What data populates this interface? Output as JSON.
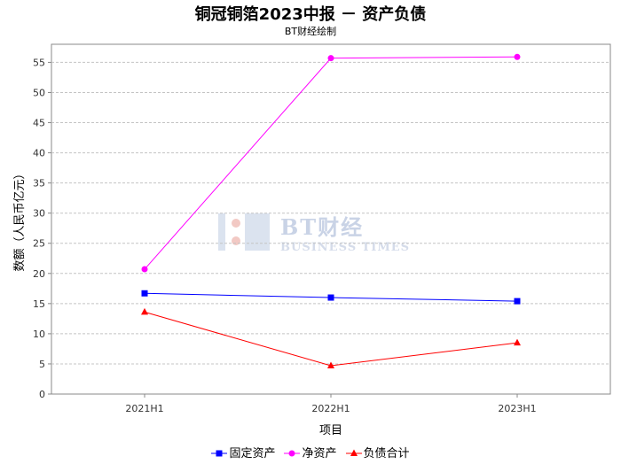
{
  "title": "铜冠铜箔2023中报 － 资产负债",
  "subtitle": "BT财经绘制",
  "watermark": {
    "title": "BT财经",
    "sub": "BUSINESS TIMES"
  },
  "chart_data": {
    "type": "line",
    "title": "铜冠铜箔2023中报 － 资产负债",
    "subtitle": "BT财经绘制",
    "xlabel": "项目",
    "ylabel": "数额（人民币亿元）",
    "categories": [
      "2021H1",
      "2022H1",
      "2023H1"
    ],
    "ylim": [
      0,
      58
    ],
    "yticks": [
      0,
      5,
      10,
      15,
      20,
      25,
      30,
      35,
      40,
      45,
      50,
      55
    ],
    "grid": true,
    "legend": "bottom",
    "series": [
      {
        "name": "固定资产",
        "values": [
          16.7,
          16.0,
          15.4
        ],
        "color": "#0000ff",
        "marker": "square"
      },
      {
        "name": "净资产",
        "values": [
          20.7,
          55.7,
          55.9
        ],
        "color": "#ff00ff",
        "marker": "circle"
      },
      {
        "name": "负债合计",
        "values": [
          13.6,
          4.7,
          8.5
        ],
        "color": "#ff0000",
        "marker": "triangle"
      }
    ]
  }
}
